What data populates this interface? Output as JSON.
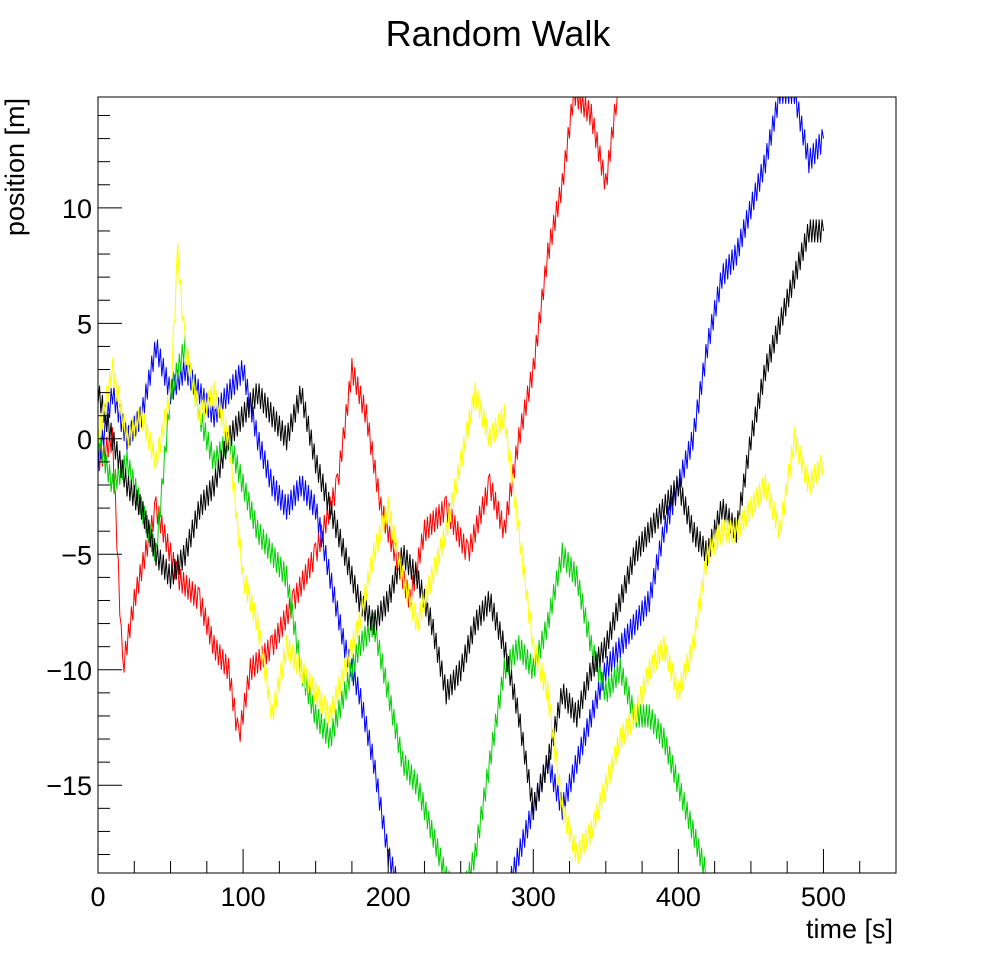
{
  "chart_data": {
    "type": "line",
    "title": "Random Walk",
    "xlabel": "time [s]",
    "ylabel": "position [m]",
    "xlim": [
      0,
      550
    ],
    "ylim": [
      -18.8,
      14.8
    ],
    "x_ticks": [
      0,
      100,
      200,
      300,
      400,
      500
    ],
    "x_tick_labels": [
      "0",
      "100",
      "200",
      "300",
      "400",
      "500"
    ],
    "y_ticks": [
      -15,
      -10,
      -5,
      0,
      5,
      10
    ],
    "y_tick_labels": [
      "−15",
      "−10",
      "−5",
      "0",
      "5",
      "10"
    ],
    "grid": false,
    "legend": "none",
    "series": [
      {
        "color": "#ff0000",
        "x": [
          0,
          10,
          17,
          25,
          40,
          55,
          70,
          80,
          90,
          97,
          105,
          120,
          135,
          150,
          165,
          175,
          185,
          195,
          205,
          215,
          225,
          240,
          255,
          270,
          280,
          290,
          300,
          310,
          320,
          328,
          340,
          350,
          358
        ],
        "y": [
          -1,
          0,
          -10,
          -7,
          -3,
          -6,
          -7,
          -9,
          -10,
          -13,
          -10,
          -9,
          -7,
          -5,
          -2,
          3,
          1,
          -3,
          -5,
          -7,
          -4,
          -3,
          -5,
          -2,
          -4,
          0,
          3,
          8,
          11,
          15,
          14,
          11,
          15
        ]
      },
      {
        "color": "#0000ff",
        "x": [
          0,
          10,
          20,
          30,
          40,
          50,
          60,
          70,
          80,
          90,
          100,
          110,
          120,
          130,
          140,
          150,
          160,
          170,
          180,
          190,
          200,
          210,
          220,
          230,
          240,
          250,
          260,
          270,
          280,
          290,
          300,
          310,
          320,
          330,
          340,
          350,
          360,
          370,
          380,
          390,
          400,
          410,
          420,
          430,
          440,
          450,
          460,
          470,
          480,
          490,
          500
        ],
        "y": [
          -1,
          2,
          0,
          1,
          4,
          2,
          3,
          2,
          1,
          2,
          3,
          0,
          -2,
          -3,
          -2,
          -3,
          -6,
          -9,
          -11,
          -14,
          -18,
          -20,
          -20,
          -20,
          -20,
          -20,
          -20,
          -20,
          -20,
          -18,
          -16,
          -14,
          -16,
          -14,
          -12,
          -10,
          -9,
          -8,
          -7,
          -4,
          -2,
          0,
          4,
          7,
          8,
          10,
          12,
          15,
          15,
          12,
          13
        ]
      },
      {
        "color": "#008000",
        "stroke": "#00d000",
        "x": [
          0,
          10,
          20,
          30,
          40,
          50,
          60,
          70,
          80,
          90,
          100,
          110,
          120,
          130,
          140,
          150,
          160,
          170,
          180,
          190,
          200,
          210,
          220,
          230,
          240,
          250,
          260,
          270,
          280,
          290,
          300,
          310,
          320,
          330,
          340,
          350,
          360,
          370,
          380,
          390,
          400,
          410,
          420
        ],
        "y": [
          0,
          -2,
          -1,
          -3,
          -5,
          2,
          4,
          1,
          -1,
          0,
          -2,
          -4,
          -5,
          -6,
          -10,
          -12,
          -13,
          -11,
          -9,
          -8,
          -11,
          -14,
          -15,
          -17,
          -19,
          -20,
          -18,
          -14,
          -10,
          -9,
          -10,
          -8,
          -5,
          -6,
          -9,
          -11,
          -10,
          -12,
          -12,
          -13,
          -15,
          -17,
          -19
        ]
      },
      {
        "color": "#000000",
        "x": [
          0,
          10,
          20,
          30,
          40,
          50,
          60,
          70,
          80,
          90,
          100,
          110,
          120,
          130,
          140,
          150,
          160,
          170,
          180,
          190,
          200,
          210,
          220,
          230,
          240,
          250,
          260,
          270,
          280,
          290,
          300,
          310,
          320,
          330,
          340,
          350,
          360,
          370,
          380,
          390,
          400,
          410,
          420,
          430,
          440,
          450,
          460,
          470,
          480,
          490,
          500
        ],
        "y": [
          2,
          0,
          -2,
          -3,
          -5,
          -6,
          -5,
          -3,
          -2,
          0,
          1,
          2,
          1,
          0,
          2,
          -1,
          -3,
          -5,
          -7,
          -8,
          -7,
          -5,
          -6,
          -8,
          -11,
          -10,
          -8,
          -7,
          -9,
          -12,
          -16,
          -14,
          -11,
          -12,
          -10,
          -9,
          -7,
          -5,
          -4,
          -3,
          -2,
          -4,
          -5,
          -3,
          -4,
          0,
          3,
          5,
          7,
          9,
          9
        ]
      },
      {
        "color": "#ffff00",
        "x": [
          0,
          10,
          20,
          30,
          40,
          50,
          55,
          60,
          70,
          80,
          90,
          100,
          110,
          120,
          130,
          140,
          150,
          160,
          170,
          180,
          190,
          200,
          210,
          220,
          230,
          240,
          250,
          260,
          270,
          280,
          290,
          300,
          310,
          320,
          330,
          340,
          350,
          360,
          370,
          380,
          390,
          400,
          410,
          420,
          430,
          440,
          450,
          460,
          470,
          480,
          490,
          500
        ],
        "y": [
          0,
          3,
          0,
          1,
          -1,
          2,
          8,
          4,
          1,
          2,
          0,
          -6,
          -8,
          -12,
          -9,
          -10,
          -11,
          -12,
          -10,
          -8,
          -5,
          -3,
          -6,
          -8,
          -6,
          -4,
          -1,
          2,
          0,
          1,
          -4,
          -9,
          -11,
          -16,
          -18,
          -17,
          -15,
          -13,
          -12,
          -10,
          -9,
          -11,
          -9,
          -5,
          -4,
          -4,
          -3,
          -2,
          -4,
          0,
          -2,
          -1
        ]
      }
    ]
  }
}
